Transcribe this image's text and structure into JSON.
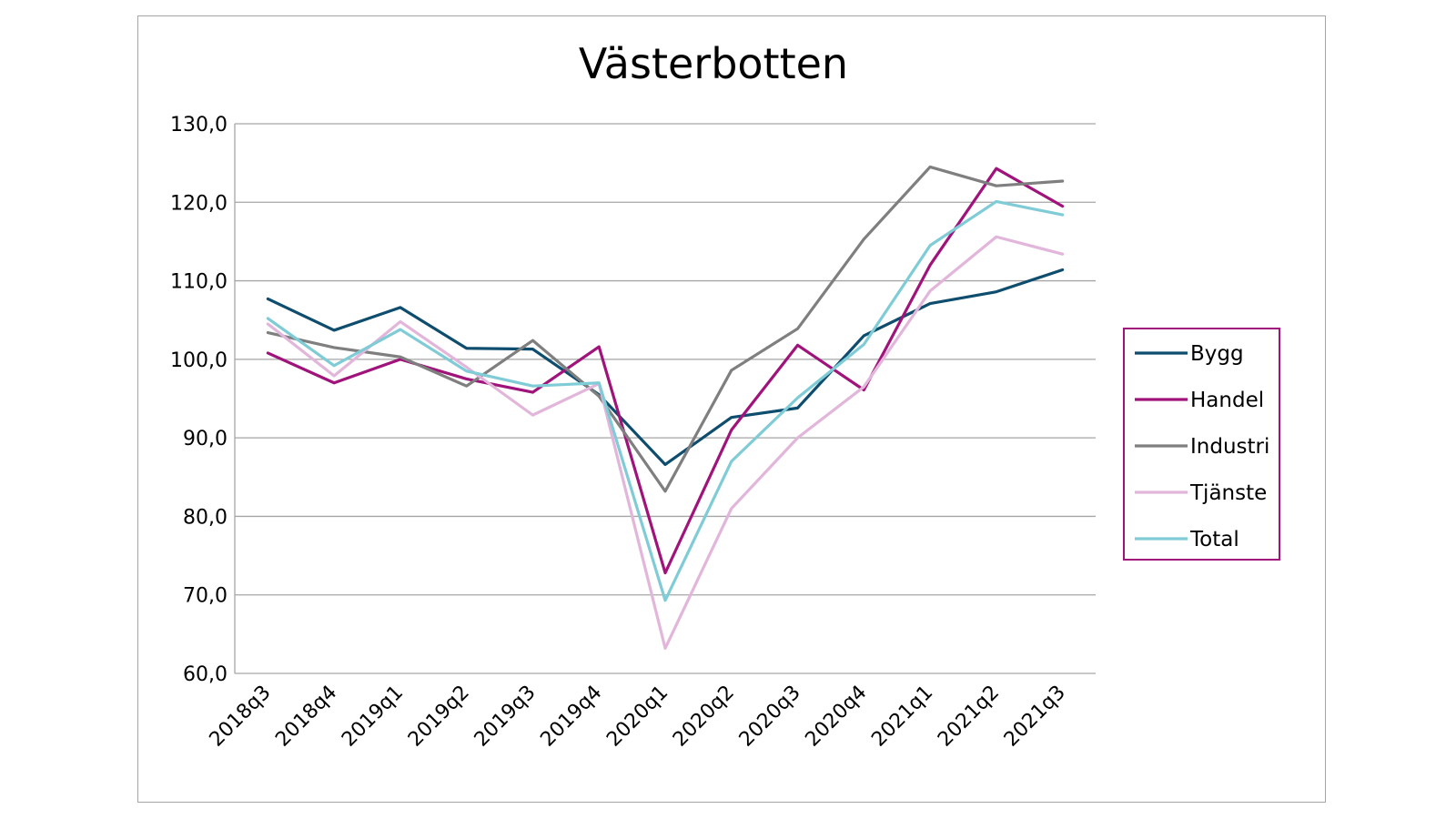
{
  "chart_data": {
    "type": "line",
    "title": "Västerbotten",
    "xlabel": "",
    "ylabel": "",
    "categories": [
      "2018q3",
      "2018q4",
      "2019q1",
      "2019q2",
      "2019q3",
      "2019q4",
      "2020q1",
      "2020q2",
      "2020q3",
      "2020q4",
      "2021q1",
      "2021q2",
      "2021q3"
    ],
    "ylim": [
      60,
      130
    ],
    "yticks": [
      60,
      70,
      80,
      90,
      100,
      110,
      120,
      130
    ],
    "ytick_labels": [
      "60,0",
      "70,0",
      "80,0",
      "90,0",
      "100,0",
      "110,0",
      "120,0",
      "130,0"
    ],
    "grid": "horizontal",
    "legend_position": "right",
    "series": [
      {
        "name": "Bygg",
        "color": "#0e4d6e",
        "values": [
          107.7,
          103.7,
          106.6,
          101.4,
          101.3,
          95.5,
          86.6,
          92.6,
          93.8,
          103.0,
          107.1,
          108.6,
          111.4
        ]
      },
      {
        "name": "Handel",
        "color": "#a0137b",
        "values": [
          100.8,
          97.0,
          100.0,
          97.5,
          95.8,
          101.6,
          72.8,
          91.0,
          101.8,
          96.1,
          112.0,
          124.3,
          119.5
        ]
      },
      {
        "name": "Industri",
        "color": "#7f7f7f",
        "values": [
          103.4,
          101.5,
          100.3,
          96.6,
          102.4,
          95.3,
          83.2,
          98.6,
          103.9,
          115.3,
          124.5,
          122.1,
          122.7
        ]
      },
      {
        "name": "Tjänste",
        "color": "#e2b6da",
        "values": [
          104.5,
          97.9,
          104.8,
          99.0,
          92.9,
          96.9,
          63.2,
          81.0,
          90.0,
          96.5,
          108.7,
          115.6,
          113.4
        ]
      },
      {
        "name": "Total",
        "color": "#7fccd6",
        "values": [
          105.2,
          99.2,
          103.8,
          98.5,
          96.6,
          97.0,
          69.3,
          87.0,
          95.1,
          101.9,
          114.5,
          120.1,
          118.4
        ]
      }
    ]
  }
}
